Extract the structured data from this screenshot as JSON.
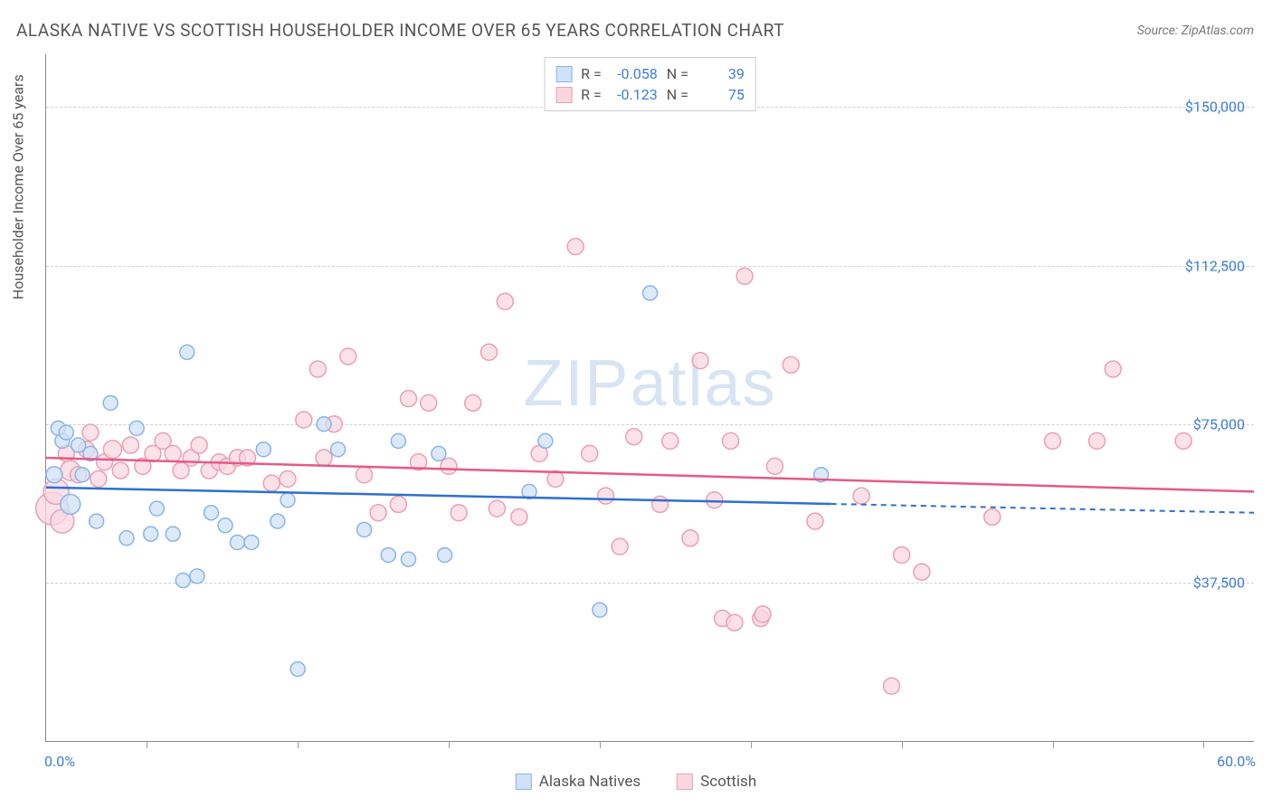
{
  "title": "ALASKA NATIVE VS SCOTTISH HOUSEHOLDER INCOME OVER 65 YEARS CORRELATION CHART",
  "source": "Source: ZipAtlas.com",
  "y_axis_label": "Householder Income Over 65 years",
  "watermark": "ZIPatlas",
  "chart": {
    "type": "scatter",
    "background_color": "#ffffff",
    "grid_color": "#d0d0d0",
    "axis_color": "#888888",
    "xlim": [
      0,
      60
    ],
    "ylim": [
      0,
      162500
    ],
    "x_range_labels": [
      "0.0%",
      "60.0%"
    ],
    "x_tick_positions": [
      5,
      12.5,
      20,
      27.5,
      35,
      42.5,
      50,
      57.5
    ],
    "y_gridlines": [
      37500,
      75000,
      112500,
      150000
    ],
    "y_tick_labels": [
      "$37,500",
      "$75,000",
      "$112,500",
      "$150,000"
    ],
    "label_color": "#3b7dd8",
    "label_fontsize": 16,
    "title_fontsize": 19,
    "title_color": "#555555"
  },
  "series": [
    {
      "name": "Alaska Natives",
      "fill": "#cfe2f7",
      "stroke": "#8ab4e8",
      "line_color": "#2e6fd0",
      "R": "-0.058",
      "N": "39",
      "trend": {
        "y_start": 60000,
        "y_end": 54000,
        "x_solid_end": 39,
        "x_dash_end": 60
      },
      "points": [
        {
          "x": 0.4,
          "y": 63000,
          "r": 9
        },
        {
          "x": 0.6,
          "y": 74000,
          "r": 8
        },
        {
          "x": 0.8,
          "y": 71000,
          "r": 8
        },
        {
          "x": 1.0,
          "y": 73000,
          "r": 8
        },
        {
          "x": 1.2,
          "y": 56000,
          "r": 11
        },
        {
          "x": 1.6,
          "y": 70000,
          "r": 8
        },
        {
          "x": 1.8,
          "y": 63000,
          "r": 8
        },
        {
          "x": 2.2,
          "y": 68000,
          "r": 8
        },
        {
          "x": 2.5,
          "y": 52000,
          "r": 8
        },
        {
          "x": 3.2,
          "y": 80000,
          "r": 8
        },
        {
          "x": 4.0,
          "y": 48000,
          "r": 8
        },
        {
          "x": 4.5,
          "y": 74000,
          "r": 8
        },
        {
          "x": 5.2,
          "y": 49000,
          "r": 8
        },
        {
          "x": 5.5,
          "y": 55000,
          "r": 8
        },
        {
          "x": 6.3,
          "y": 49000,
          "r": 8
        },
        {
          "x": 6.8,
          "y": 38000,
          "r": 8
        },
        {
          "x": 7.0,
          "y": 92000,
          "r": 8
        },
        {
          "x": 7.5,
          "y": 39000,
          "r": 8
        },
        {
          "x": 8.2,
          "y": 54000,
          "r": 8
        },
        {
          "x": 8.9,
          "y": 51000,
          "r": 8
        },
        {
          "x": 9.5,
          "y": 47000,
          "r": 8
        },
        {
          "x": 10.2,
          "y": 47000,
          "r": 8
        },
        {
          "x": 10.8,
          "y": 69000,
          "r": 8
        },
        {
          "x": 11.5,
          "y": 52000,
          "r": 8
        },
        {
          "x": 12.0,
          "y": 57000,
          "r": 8
        },
        {
          "x": 12.5,
          "y": 17000,
          "r": 8
        },
        {
          "x": 13.8,
          "y": 75000,
          "r": 8
        },
        {
          "x": 14.5,
          "y": 69000,
          "r": 8
        },
        {
          "x": 15.8,
          "y": 50000,
          "r": 8
        },
        {
          "x": 17.0,
          "y": 44000,
          "r": 8
        },
        {
          "x": 17.5,
          "y": 71000,
          "r": 8
        },
        {
          "x": 18.0,
          "y": 43000,
          "r": 8
        },
        {
          "x": 19.5,
          "y": 68000,
          "r": 8
        },
        {
          "x": 19.8,
          "y": 44000,
          "r": 8
        },
        {
          "x": 24.0,
          "y": 59000,
          "r": 8
        },
        {
          "x": 24.8,
          "y": 71000,
          "r": 8
        },
        {
          "x": 27.5,
          "y": 31000,
          "r": 8
        },
        {
          "x": 30.0,
          "y": 106000,
          "r": 8
        },
        {
          "x": 38.5,
          "y": 63000,
          "r": 8
        }
      ]
    },
    {
      "name": "Scottish",
      "fill": "#fad7e0",
      "stroke": "#ec9fb4",
      "line_color": "#e55a87",
      "R": "-0.123",
      "N": "75",
      "trend": {
        "y_start": 67000,
        "y_end": 59000,
        "x_solid_end": 60,
        "x_dash_end": 60
      },
      "points": [
        {
          "x": 0.3,
          "y": 55000,
          "r": 18
        },
        {
          "x": 0.5,
          "y": 59000,
          "r": 14
        },
        {
          "x": 0.8,
          "y": 52000,
          "r": 13
        },
        {
          "x": 1.0,
          "y": 68000,
          "r": 9
        },
        {
          "x": 1.2,
          "y": 64000,
          "r": 11
        },
        {
          "x": 1.6,
          "y": 63000,
          "r": 9
        },
        {
          "x": 2.0,
          "y": 69000,
          "r": 9
        },
        {
          "x": 2.2,
          "y": 73000,
          "r": 9
        },
        {
          "x": 2.6,
          "y": 62000,
          "r": 9
        },
        {
          "x": 2.9,
          "y": 66000,
          "r": 9
        },
        {
          "x": 3.3,
          "y": 69000,
          "r": 10
        },
        {
          "x": 3.7,
          "y": 64000,
          "r": 9
        },
        {
          "x": 4.2,
          "y": 70000,
          "r": 9
        },
        {
          "x": 4.8,
          "y": 65000,
          "r": 9
        },
        {
          "x": 5.3,
          "y": 68000,
          "r": 9
        },
        {
          "x": 5.8,
          "y": 71000,
          "r": 9
        },
        {
          "x": 6.3,
          "y": 68000,
          "r": 9
        },
        {
          "x": 6.7,
          "y": 64000,
          "r": 9
        },
        {
          "x": 7.2,
          "y": 67000,
          "r": 9
        },
        {
          "x": 7.6,
          "y": 70000,
          "r": 9
        },
        {
          "x": 8.1,
          "y": 64000,
          "r": 9
        },
        {
          "x": 8.6,
          "y": 66000,
          "r": 9
        },
        {
          "x": 9.0,
          "y": 65000,
          "r": 9
        },
        {
          "x": 9.5,
          "y": 67000,
          "r": 9
        },
        {
          "x": 10.0,
          "y": 67000,
          "r": 9
        },
        {
          "x": 11.2,
          "y": 61000,
          "r": 9
        },
        {
          "x": 12.0,
          "y": 62000,
          "r": 9
        },
        {
          "x": 12.8,
          "y": 76000,
          "r": 9
        },
        {
          "x": 13.5,
          "y": 88000,
          "r": 9
        },
        {
          "x": 13.8,
          "y": 67000,
          "r": 9
        },
        {
          "x": 14.3,
          "y": 75000,
          "r": 9
        },
        {
          "x": 15.0,
          "y": 91000,
          "r": 9
        },
        {
          "x": 15.8,
          "y": 63000,
          "r": 9
        },
        {
          "x": 16.5,
          "y": 54000,
          "r": 9
        },
        {
          "x": 17.5,
          "y": 56000,
          "r": 9
        },
        {
          "x": 18.0,
          "y": 81000,
          "r": 9
        },
        {
          "x": 18.5,
          "y": 66000,
          "r": 9
        },
        {
          "x": 19.0,
          "y": 80000,
          "r": 9
        },
        {
          "x": 20.0,
          "y": 65000,
          "r": 9
        },
        {
          "x": 20.5,
          "y": 54000,
          "r": 9
        },
        {
          "x": 21.2,
          "y": 80000,
          "r": 9
        },
        {
          "x": 22.0,
          "y": 92000,
          "r": 9
        },
        {
          "x": 22.4,
          "y": 55000,
          "r": 9
        },
        {
          "x": 22.8,
          "y": 104000,
          "r": 9
        },
        {
          "x": 23.5,
          "y": 53000,
          "r": 9
        },
        {
          "x": 24.5,
          "y": 68000,
          "r": 9
        },
        {
          "x": 25.3,
          "y": 62000,
          "r": 9
        },
        {
          "x": 26.3,
          "y": 117000,
          "r": 9
        },
        {
          "x": 27.0,
          "y": 68000,
          "r": 9
        },
        {
          "x": 27.8,
          "y": 58000,
          "r": 9
        },
        {
          "x": 28.5,
          "y": 46000,
          "r": 9
        },
        {
          "x": 29.2,
          "y": 72000,
          "r": 9
        },
        {
          "x": 30.5,
          "y": 56000,
          "r": 9
        },
        {
          "x": 31.0,
          "y": 71000,
          "r": 9
        },
        {
          "x": 32.0,
          "y": 48000,
          "r": 9
        },
        {
          "x": 32.5,
          "y": 90000,
          "r": 9
        },
        {
          "x": 33.2,
          "y": 57000,
          "r": 9
        },
        {
          "x": 34.0,
          "y": 71000,
          "r": 9
        },
        {
          "x": 34.7,
          "y": 110000,
          "r": 9
        },
        {
          "x": 35.5,
          "y": 29000,
          "r": 9
        },
        {
          "x": 35.6,
          "y": 30000,
          "r": 9
        },
        {
          "x": 36.2,
          "y": 65000,
          "r": 9
        },
        {
          "x": 37.0,
          "y": 89000,
          "r": 9
        },
        {
          "x": 38.2,
          "y": 52000,
          "r": 9
        },
        {
          "x": 40.5,
          "y": 58000,
          "r": 9
        },
        {
          "x": 42.0,
          "y": 13000,
          "r": 9
        },
        {
          "x": 42.5,
          "y": 44000,
          "r": 9
        },
        {
          "x": 43.5,
          "y": 40000,
          "r": 9
        },
        {
          "x": 47.0,
          "y": 53000,
          "r": 9
        },
        {
          "x": 50.0,
          "y": 71000,
          "r": 9
        },
        {
          "x": 52.2,
          "y": 71000,
          "r": 9
        },
        {
          "x": 53.0,
          "y": 88000,
          "r": 9
        },
        {
          "x": 56.5,
          "y": 71000,
          "r": 9
        },
        {
          "x": 33.6,
          "y": 29000,
          "r": 9
        },
        {
          "x": 34.2,
          "y": 28000,
          "r": 9
        }
      ]
    }
  ],
  "legend_top": {
    "R_label": "R =",
    "N_label": "N ="
  },
  "legend_bottom": [
    "Alaska Natives",
    "Scottish"
  ]
}
